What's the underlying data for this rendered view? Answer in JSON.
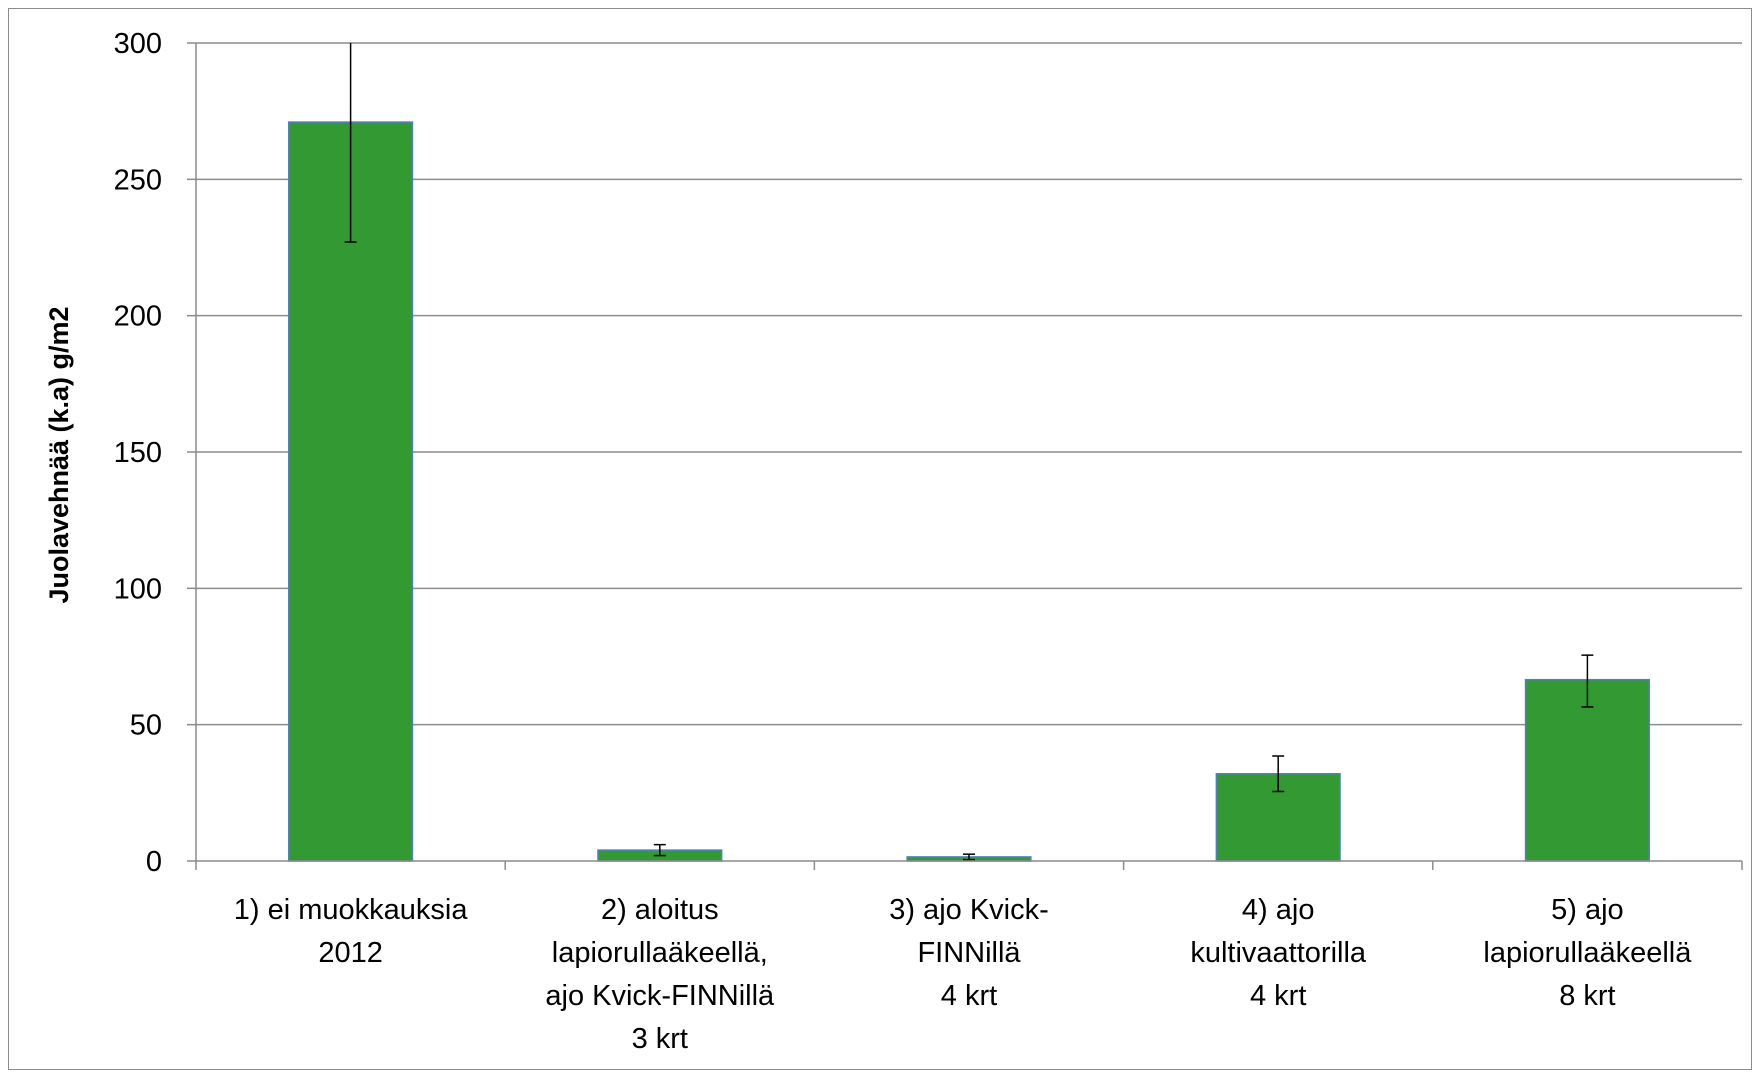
{
  "chart_data": {
    "type": "bar",
    "title": "",
    "xlabel": "",
    "ylabel": "Juolavehnää  (k.a)  g/m2",
    "ylim": [
      0,
      300
    ],
    "yticks": [
      0,
      50,
      100,
      150,
      200,
      250,
      300
    ],
    "grid": true,
    "legend": "none",
    "categories": [
      [
        "1) ei muokkauksia",
        "2012"
      ],
      [
        "2) aloitus",
        "lapiorullaäkeellä,",
        "ajo Kvick-FINNillä",
        "3 krt"
      ],
      [
        "3) ajo Kvick-",
        "FINNillä",
        "4 krt"
      ],
      [
        "4) ajo",
        "kultivaattorilla",
        "4 krt"
      ],
      [
        "5) ajo",
        "lapiorullaäkeellä",
        "8 krt"
      ]
    ],
    "values": [
      271,
      4,
      1.5,
      32,
      66.5
    ],
    "error_low": [
      227,
      2,
      0.5,
      25.5,
      56.5
    ],
    "error_high": [
      300,
      6,
      2.5,
      38.5,
      75.5
    ],
    "bar_color": "#339933",
    "bar_edge_color": "#4f81bd",
    "grid_color": "#8c8c8c"
  }
}
